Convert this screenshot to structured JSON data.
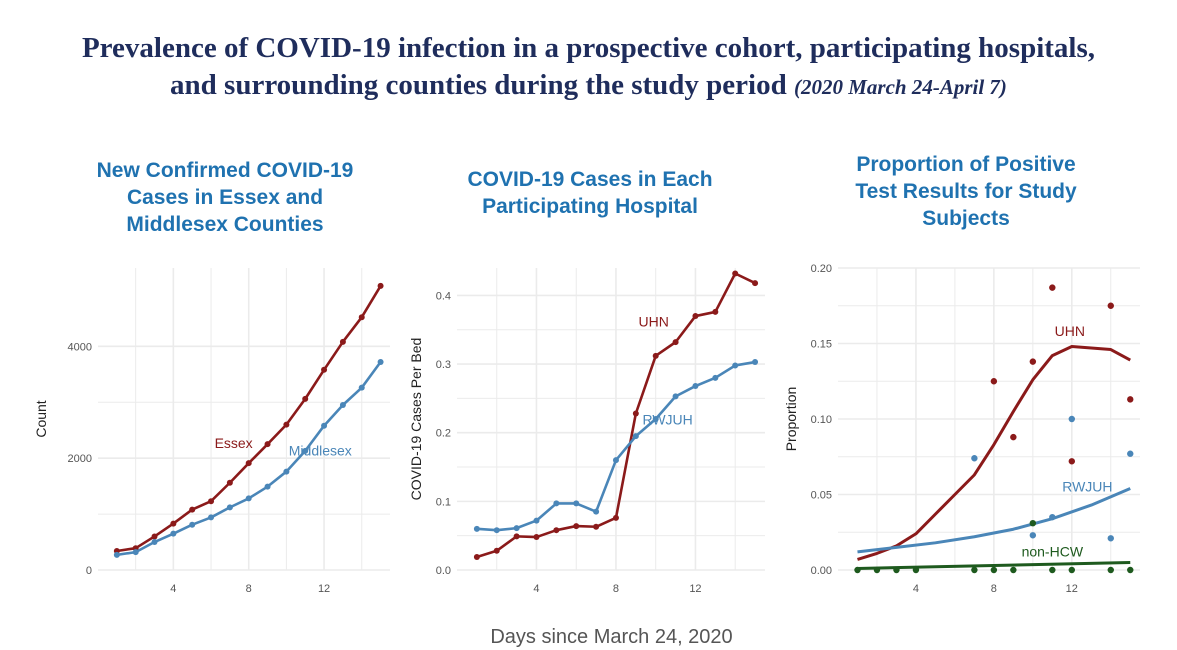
{
  "title": {
    "line1": "Prevalence of COVID-19 infection in a prospective cohort, participating hospitals,",
    "line2": "and surrounding counties during the study period",
    "subtitle": "(2020 March 24-April 7)"
  },
  "shared_xlabel": "Days since March 24, 2020",
  "colors": {
    "red": "#8b1a1a",
    "blue": "#4a86b8",
    "green": "#1e5a1e",
    "title_blue": "#1f72b0",
    "grid": "#ebebeb"
  },
  "panels": [
    {
      "title_lines": [
        "New Confirmed COVID-19",
        "Cases in Essex and",
        "Middlesex Counties"
      ]
    },
    {
      "title_lines": [
        "COVID-19 Cases in Each",
        "Participating Hospital"
      ]
    },
    {
      "title_lines": [
        "Proportion of Positive",
        "Test Results for Study",
        "Subjects"
      ]
    }
  ],
  "chart_data": [
    {
      "type": "line",
      "title": "New Confirmed COVID-19 Cases in Essex and Middlesex Counties",
      "xlabel": "Days since March 24, 2020",
      "ylabel": "Count",
      "xlim": [
        0,
        15.5
      ],
      "ylim": [
        0,
        5400
      ],
      "xticks": [
        4,
        8,
        12
      ],
      "yticks": [
        0,
        2000,
        4000
      ],
      "ytick_labels": [
        "0",
        "2000",
        "4000"
      ],
      "grid": true,
      "series": [
        {
          "name": "Essex",
          "color": "#8b1a1a",
          "label_at": [
            7.2,
            2180
          ],
          "x": [
            1,
            2,
            3,
            4,
            5,
            6,
            7,
            8,
            9,
            10,
            11,
            12,
            13,
            14,
            15
          ],
          "values": [
            340,
            390,
            600,
            830,
            1080,
            1230,
            1560,
            1910,
            2250,
            2600,
            3060,
            3580,
            4080,
            4520,
            5080
          ]
        },
        {
          "name": "Middlesex",
          "color": "#4a86b8",
          "label_at": [
            11.8,
            2050
          ],
          "x": [
            1,
            2,
            3,
            4,
            5,
            6,
            7,
            8,
            9,
            10,
            11,
            12,
            13,
            14,
            15
          ],
          "values": [
            270,
            320,
            500,
            650,
            810,
            940,
            1120,
            1280,
            1490,
            1760,
            2130,
            2580,
            2950,
            3260,
            3720
          ]
        }
      ]
    },
    {
      "type": "line",
      "title": "COVID-19 Cases in Each Participating Hospital",
      "xlabel": "Days since March 24, 2020",
      "ylabel": "COVID-19 Cases Per Bed",
      "xlim": [
        0,
        15.5
      ],
      "ylim": [
        0,
        0.44
      ],
      "xticks": [
        4,
        8,
        12
      ],
      "yticks": [
        0.0,
        0.1,
        0.2,
        0.3,
        0.4
      ],
      "ytick_labels": [
        "0.0",
        "0.1",
        "0.2",
        "0.3",
        "0.4"
      ],
      "grid": true,
      "series": [
        {
          "name": "UHN",
          "color": "#8b1a1a",
          "label_at": [
            9.9,
            0.355
          ],
          "x": [
            1,
            2,
            3,
            4,
            5,
            6,
            7,
            8,
            9,
            10,
            11,
            12,
            13,
            14,
            15
          ],
          "values": [
            0.019,
            0.028,
            0.049,
            0.048,
            0.058,
            0.064,
            0.063,
            0.076,
            0.228,
            0.312,
            0.332,
            0.37,
            0.376,
            0.432,
            0.418
          ]
        },
        {
          "name": "RWJUH",
          "color": "#4a86b8",
          "label_at": [
            10.6,
            0.212
          ],
          "x": [
            1,
            2,
            3,
            4,
            5,
            6,
            7,
            8,
            9,
            10,
            11,
            12,
            13,
            14,
            15
          ],
          "values": [
            0.06,
            0.058,
            0.061,
            0.072,
            0.097,
            0.097,
            0.085,
            0.16,
            0.195,
            0.22,
            0.253,
            0.268,
            0.28,
            0.298,
            0.303
          ]
        }
      ]
    },
    {
      "type": "scatter",
      "title": "Proportion of Positive Test Results for Study Subjects",
      "xlabel": "Days since March 24, 2020",
      "ylabel": "Proportion",
      "xlim": [
        0,
        15.5
      ],
      "ylim": [
        0,
        0.2
      ],
      "xticks": [
        4,
        8,
        12
      ],
      "yticks": [
        0.0,
        0.05,
        0.1,
        0.15,
        0.2
      ],
      "ytick_labels": [
        "0.00",
        "0.05",
        "0.10",
        "0.15",
        "0.20"
      ],
      "grid": true,
      "series": [
        {
          "name": "UHN",
          "color": "#8b1a1a",
          "label_at": [
            11.9,
            0.155
          ],
          "points": [
            [
              8,
              0.125
            ],
            [
              9,
              0.088
            ],
            [
              10,
              0.138
            ],
            [
              11,
              0.187
            ],
            [
              12,
              0.072
            ],
            [
              14,
              0.175
            ],
            [
              15,
              0.113
            ]
          ],
          "smooth": [
            [
              1,
              0.007
            ],
            [
              2,
              0.011
            ],
            [
              3,
              0.016
            ],
            [
              4,
              0.024
            ],
            [
              5,
              0.037
            ],
            [
              6,
              0.05
            ],
            [
              7,
              0.063
            ],
            [
              8,
              0.083
            ],
            [
              9,
              0.105
            ],
            [
              10,
              0.126
            ],
            [
              11,
              0.142
            ],
            [
              12,
              0.148
            ],
            [
              13,
              0.147
            ],
            [
              14,
              0.146
            ],
            [
              15,
              0.139
            ]
          ]
        },
        {
          "name": "RWJUH",
          "color": "#4a86b8",
          "label_at": [
            12.8,
            0.052
          ],
          "points": [
            [
              7,
              0.074
            ],
            [
              10,
              0.023
            ],
            [
              11,
              0.035
            ],
            [
              12,
              0.1
            ],
            [
              14,
              0.021
            ],
            [
              15,
              0.077
            ]
          ],
          "smooth": [
            [
              1,
              0.012
            ],
            [
              3,
              0.015
            ],
            [
              5,
              0.018
            ],
            [
              7,
              0.022
            ],
            [
              9,
              0.027
            ],
            [
              11,
              0.034
            ],
            [
              13,
              0.043
            ],
            [
              15,
              0.054
            ]
          ]
        },
        {
          "name": "non-HCW",
          "color": "#1e5a1e",
          "label_at": [
            11.0,
            0.009
          ],
          "points": [
            [
              1,
              0.0
            ],
            [
              2,
              0.0
            ],
            [
              3,
              0.0
            ],
            [
              4,
              0.0
            ],
            [
              7,
              0.0
            ],
            [
              8,
              0.0
            ],
            [
              9,
              0.0
            ],
            [
              10,
              0.031
            ],
            [
              11,
              0.0
            ],
            [
              12,
              0.0
            ],
            [
              14,
              0.0
            ],
            [
              15,
              0.0
            ]
          ],
          "smooth": [
            [
              1,
              0.001
            ],
            [
              15,
              0.005
            ]
          ]
        }
      ]
    }
  ]
}
